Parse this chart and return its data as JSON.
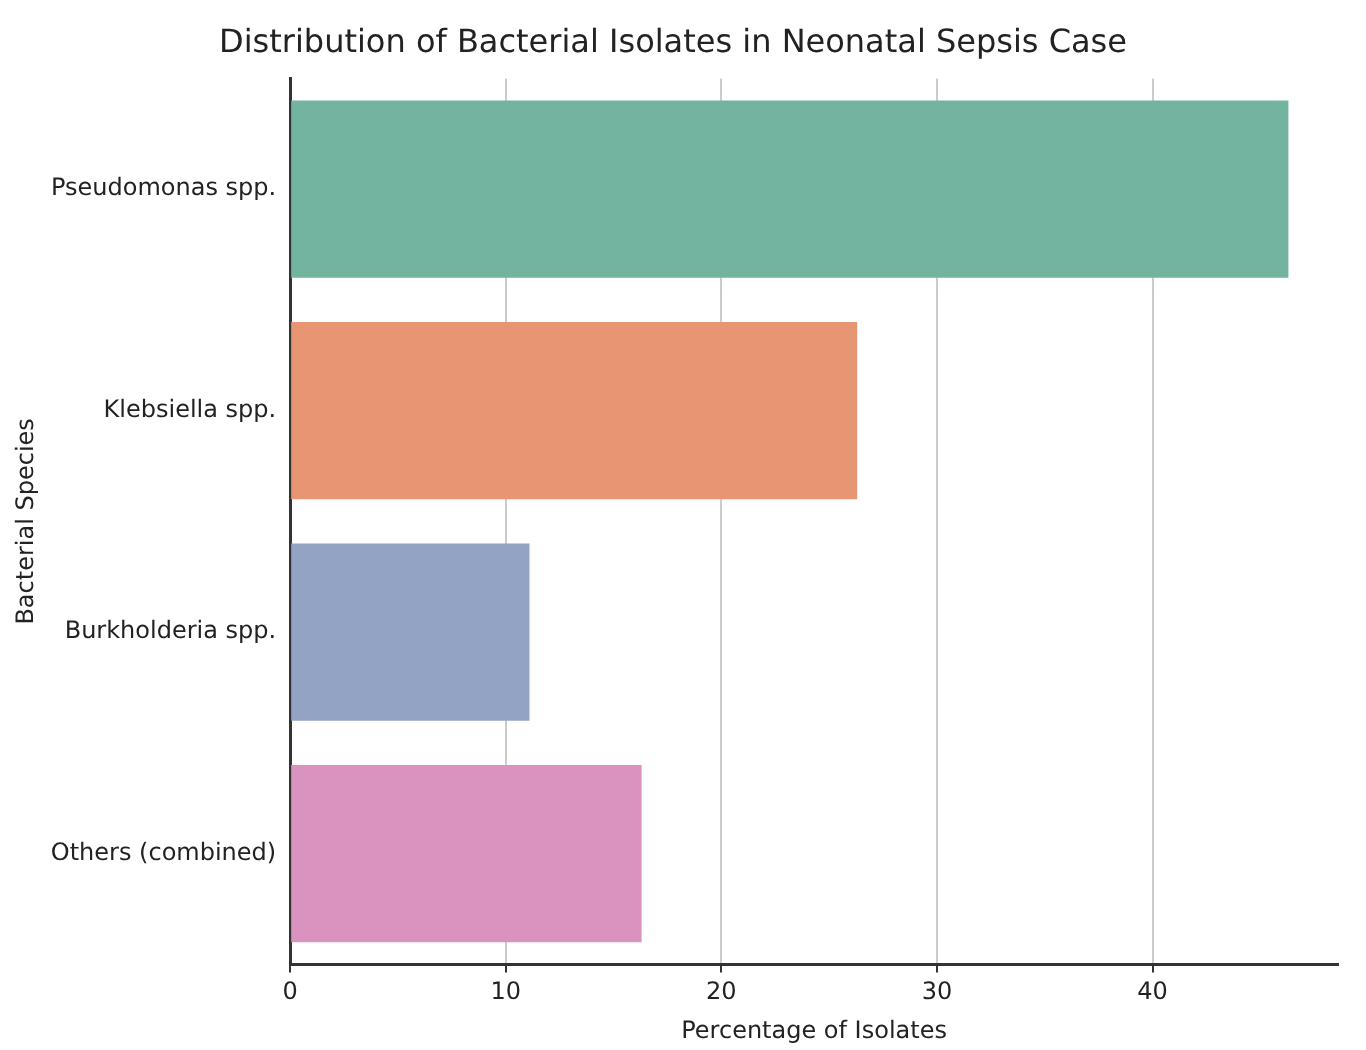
{
  "chart_data": {
    "type": "bar",
    "orientation": "horizontal",
    "title": "Distribution of Bacterial Isolates in Neonatal Sepsis Case",
    "xlabel": "Percentage of Isolates",
    "ylabel": "Bacterial Species",
    "categories": [
      "Pseudomonas spp.",
      "Klebsiella spp.",
      "Burkholderia spp.",
      "Others (combined)"
    ],
    "values": [
      46.3,
      26.3,
      11.1,
      16.3
    ],
    "colors": [
      "#72b4a0",
      "#e89574",
      "#93a3c3",
      "#da93bf"
    ],
    "xlim": [
      0,
      48.6
    ],
    "xticks": [
      0,
      10,
      20,
      30,
      40
    ],
    "grid": "x",
    "legend": false
  }
}
